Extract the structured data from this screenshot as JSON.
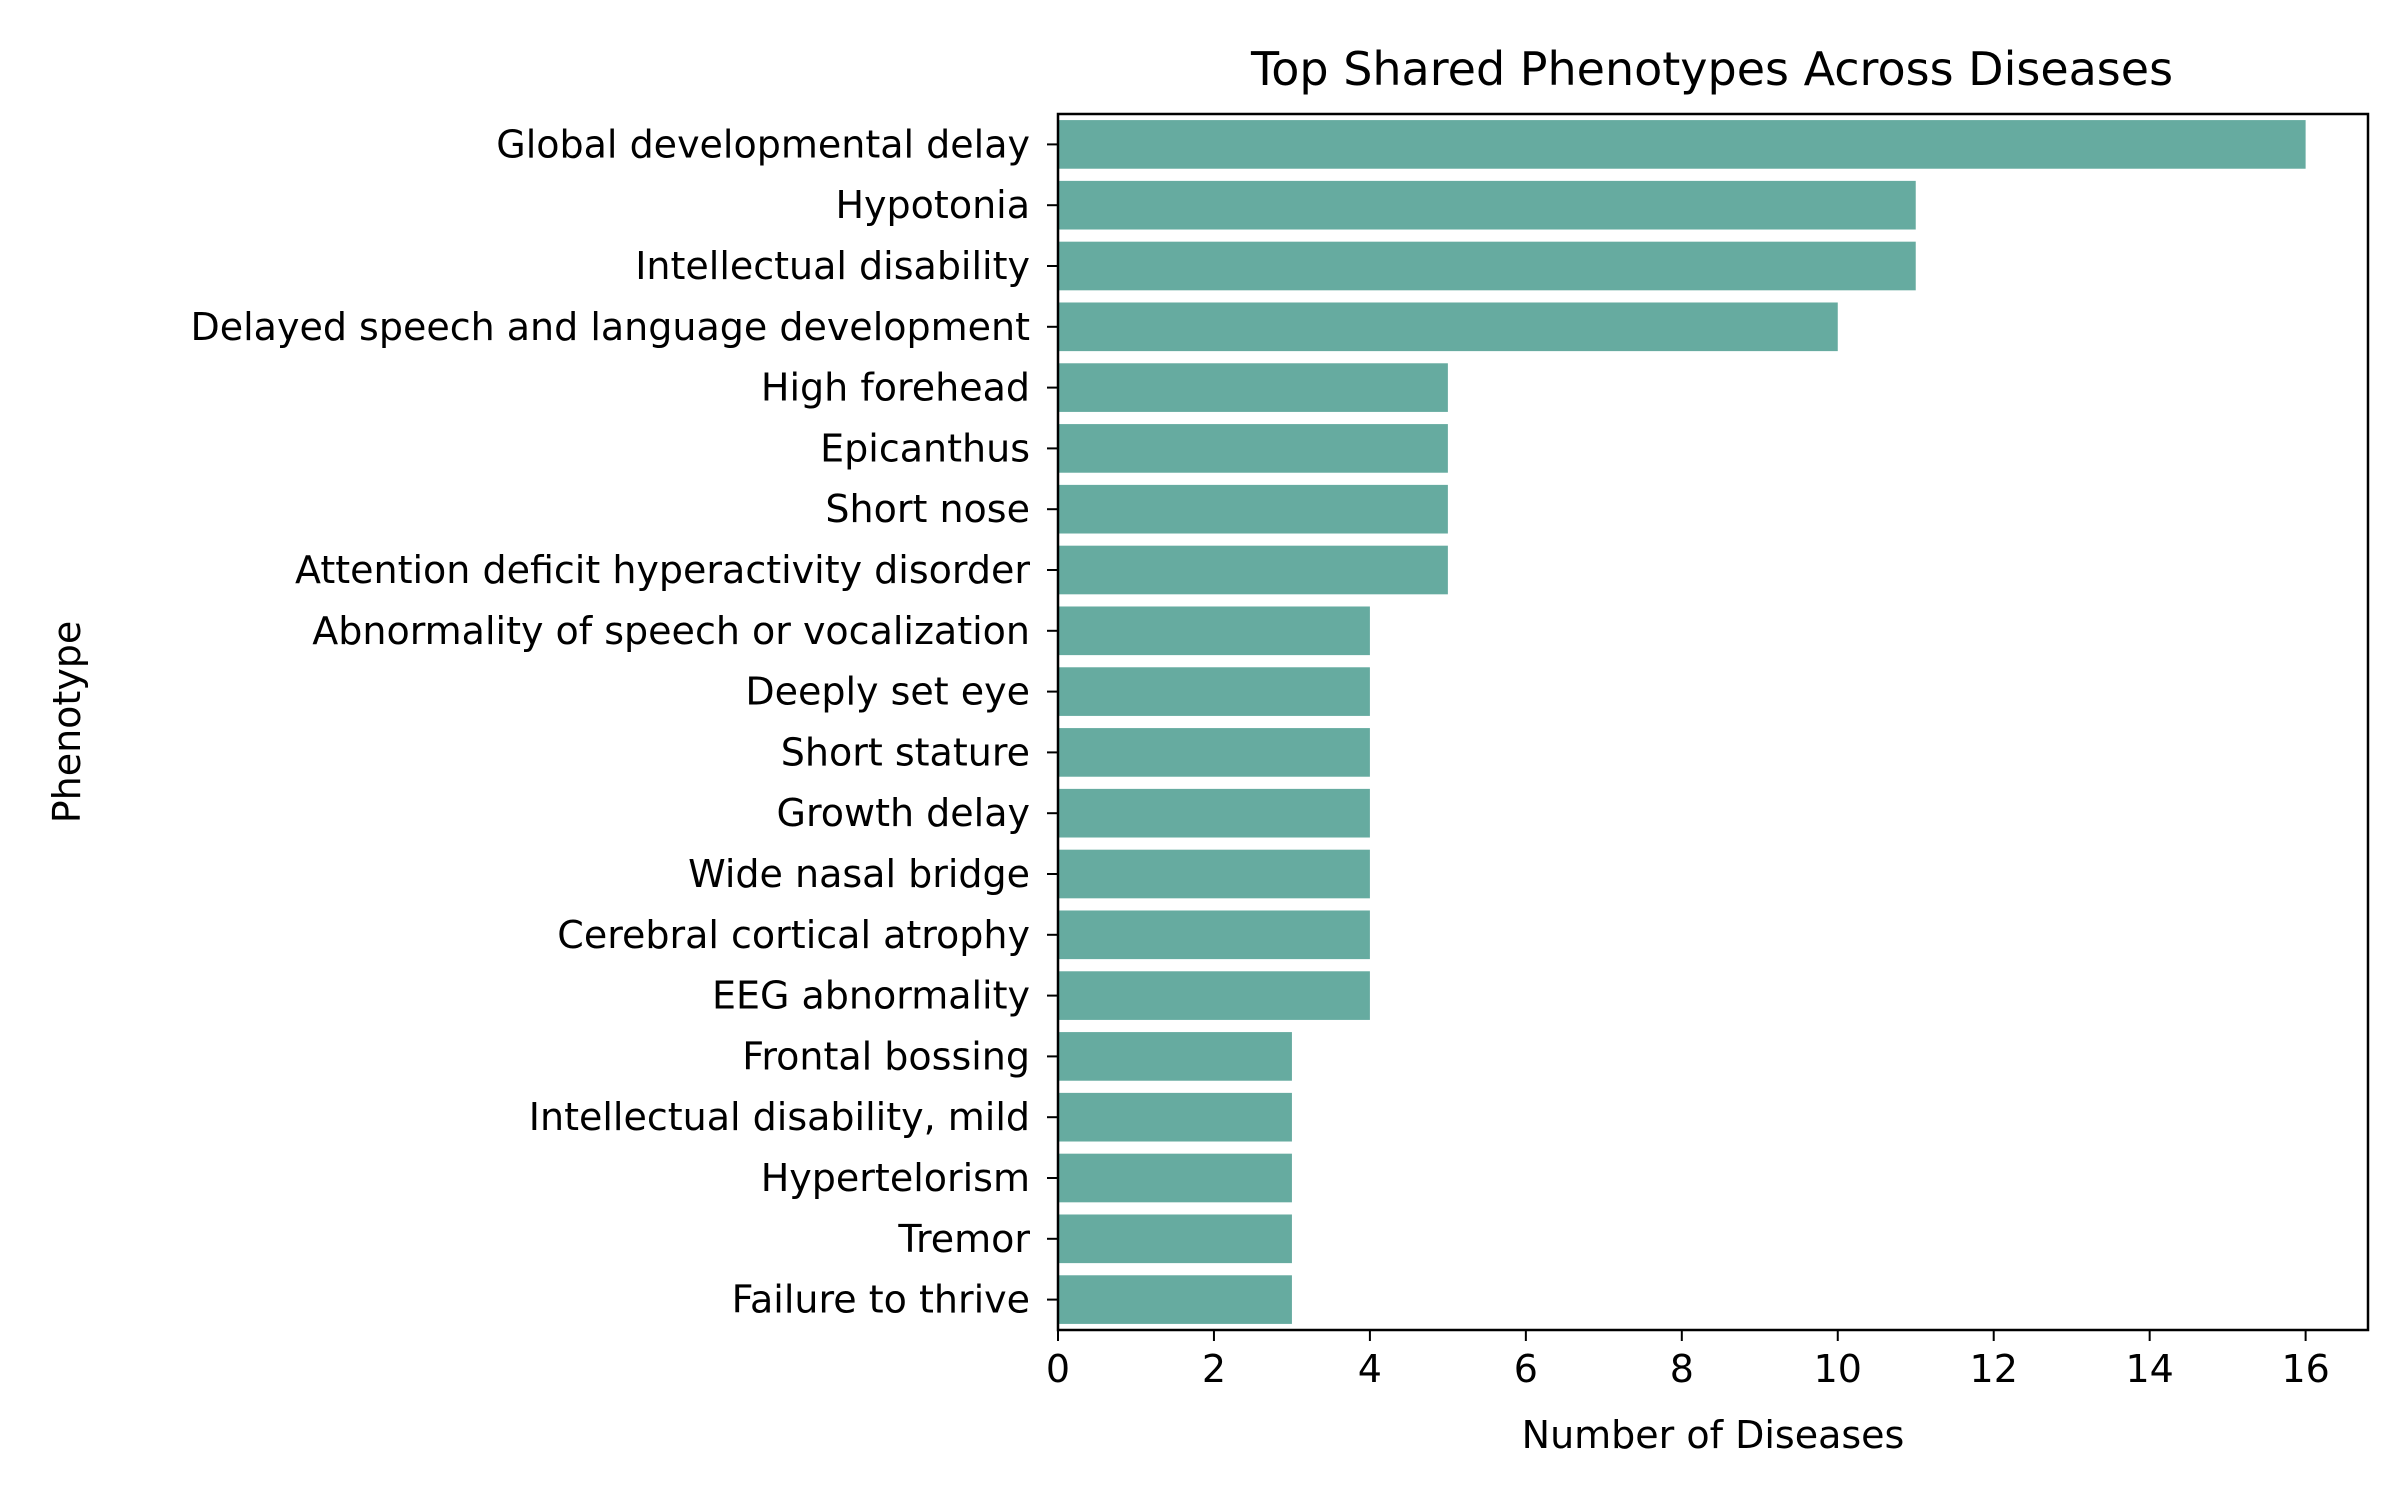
{
  "chart_data": {
    "type": "bar",
    "orientation": "horizontal",
    "title": "Top Shared Phenotypes Across Diseases",
    "xlabel": "Number of Diseases",
    "ylabel": "Phenotype",
    "xlim": [
      0,
      16.8
    ],
    "xticks": [
      0,
      2,
      4,
      6,
      8,
      10,
      12,
      14,
      16
    ],
    "grid": false,
    "legend": "none",
    "bar_color": "#66aba0",
    "categories": [
      "Global developmental delay",
      "Hypotonia",
      "Intellectual disability",
      "Delayed speech and language development",
      "High forehead",
      "Epicanthus",
      "Short nose",
      "Attention deficit hyperactivity disorder",
      "Abnormality of speech or vocalization",
      "Deeply set eye",
      "Short stature",
      "Growth delay",
      "Wide nasal bridge",
      "Cerebral cortical atrophy",
      "EEG abnormality",
      "Frontal bossing",
      "Intellectual disability, mild",
      "Hypertelorism",
      "Tremor",
      "Failure to thrive"
    ],
    "values": [
      16,
      11,
      11,
      10,
      5,
      5,
      5,
      5,
      4,
      4,
      4,
      4,
      4,
      4,
      4,
      3,
      3,
      3,
      3,
      3
    ]
  }
}
